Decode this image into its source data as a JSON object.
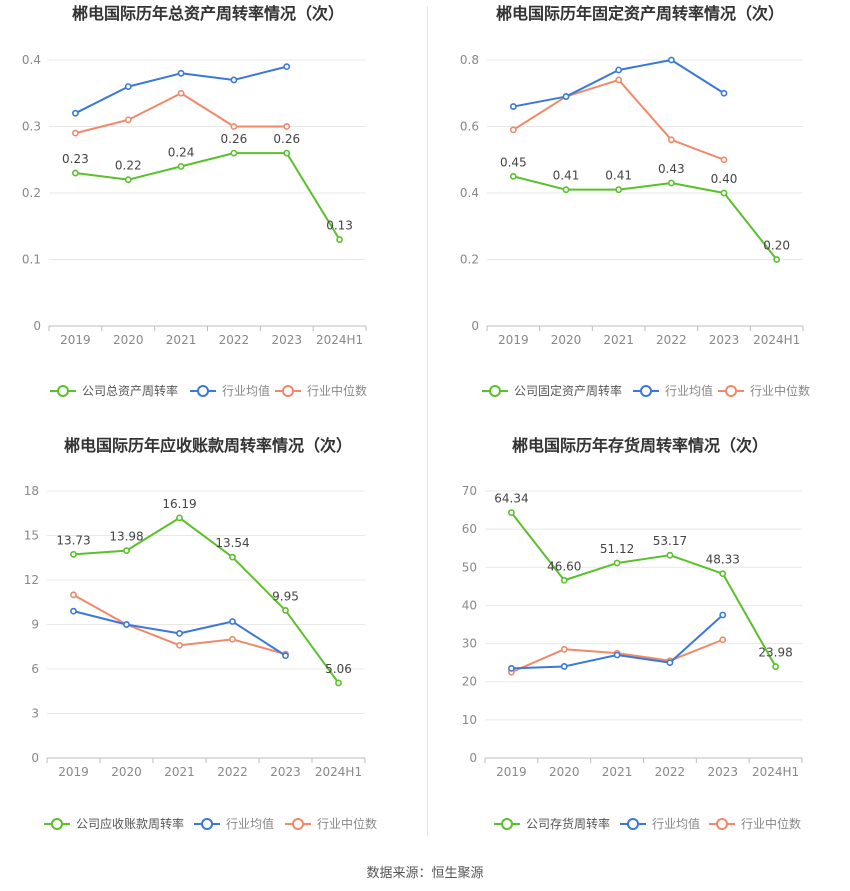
{
  "source_label": "数据来源：恒生聚源",
  "colors": {
    "company": "#5ac02b",
    "avg": "#3a78d9",
    "median": "#f0896a"
  },
  "chart_data": [
    {
      "type": "line",
      "title": "郴电国际历年总资产周转率情况（次）",
      "categories": [
        "2019",
        "2020",
        "2021",
        "2022",
        "2023",
        "2024H1"
      ],
      "yticks": [
        "0",
        "0.1",
        "0.2",
        "0.3",
        "0.4"
      ],
      "ylim": [
        0,
        0.4
      ],
      "series": [
        {
          "name": "公司总资产周转率",
          "color": "company",
          "values": [
            0.23,
            0.22,
            0.24,
            0.26,
            0.26,
            0.13
          ],
          "labels": [
            "0.23",
            "0.22",
            "0.24",
            "0.26",
            "0.26",
            "0.13"
          ]
        },
        {
          "name": "行业均值",
          "color": "avg",
          "values": [
            0.32,
            0.36,
            0.38,
            0.37,
            0.39,
            null
          ]
        },
        {
          "name": "行业中位数",
          "color": "median",
          "values": [
            0.29,
            0.31,
            0.35,
            0.3,
            0.3,
            null
          ]
        }
      ]
    },
    {
      "type": "line",
      "title": "郴电国际历年固定资产周转率情况（次）",
      "categories": [
        "2019",
        "2020",
        "2021",
        "2022",
        "2023",
        "2024H1"
      ],
      "yticks": [
        "0",
        "0.2",
        "0.4",
        "0.6",
        "0.8"
      ],
      "ylim": [
        0,
        0.8
      ],
      "series": [
        {
          "name": "公司固定资产周转率",
          "color": "company",
          "values": [
            0.45,
            0.41,
            0.41,
            0.43,
            0.4,
            0.2
          ],
          "labels": [
            "0.45",
            "0.41",
            "0.41",
            "0.43",
            "0.40",
            "0.20"
          ]
        },
        {
          "name": "行业均值",
          "color": "avg",
          "values": [
            0.66,
            0.69,
            0.77,
            0.8,
            0.7,
            null
          ]
        },
        {
          "name": "行业中位数",
          "color": "median",
          "values": [
            0.59,
            0.69,
            0.74,
            0.56,
            0.5,
            null
          ]
        }
      ]
    },
    {
      "type": "line",
      "title": "郴电国际历年应收账款周转率情况（次）",
      "categories": [
        "2019",
        "2020",
        "2021",
        "2022",
        "2023",
        "2024H1"
      ],
      "yticks": [
        "0",
        "3",
        "6",
        "9",
        "12",
        "15",
        "18"
      ],
      "ylim": [
        0,
        18
      ],
      "series": [
        {
          "name": "公司应收账款周转率",
          "color": "company",
          "values": [
            13.73,
            13.98,
            16.19,
            13.54,
            9.95,
            5.06
          ],
          "labels": [
            "13.73",
            "13.98",
            "16.19",
            "13.54",
            "9.95",
            "5.06"
          ]
        },
        {
          "name": "行业均值",
          "color": "avg",
          "values": [
            9.9,
            9.0,
            8.4,
            9.2,
            6.9,
            null
          ]
        },
        {
          "name": "行业中位数",
          "color": "median",
          "values": [
            11.0,
            9.0,
            7.6,
            8.0,
            7.0,
            null
          ]
        }
      ]
    },
    {
      "type": "line",
      "title": "郴电国际历年存货周转率情况（次）",
      "categories": [
        "2019",
        "2020",
        "2021",
        "2022",
        "2023",
        "2024H1"
      ],
      "yticks": [
        "0",
        "10",
        "20",
        "30",
        "40",
        "50",
        "60",
        "70"
      ],
      "ylim": [
        0,
        70
      ],
      "series": [
        {
          "name": "公司存货周转率",
          "color": "company",
          "values": [
            64.34,
            46.6,
            51.12,
            53.17,
            48.33,
            23.98
          ],
          "labels": [
            "64.34",
            "46.60",
            "51.12",
            "53.17",
            "48.33",
            "23.98"
          ]
        },
        {
          "name": "行业均值",
          "color": "avg",
          "values": [
            23.5,
            24.0,
            27.0,
            25.0,
            37.5,
            null
          ]
        },
        {
          "name": "行业中位数",
          "color": "median",
          "values": [
            22.5,
            28.5,
            27.5,
            25.5,
            31.0,
            null
          ]
        }
      ]
    }
  ]
}
